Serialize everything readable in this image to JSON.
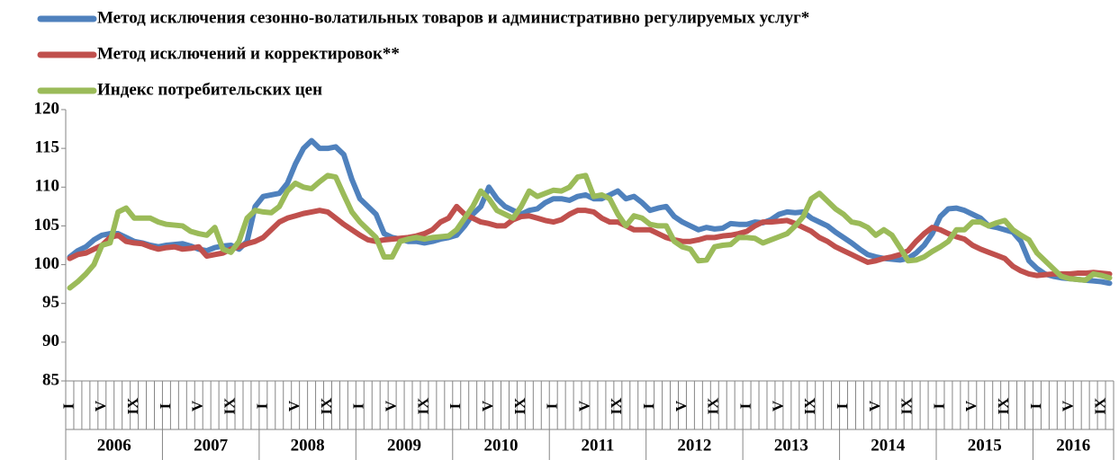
{
  "chart_data": {
    "type": "line",
    "categories": [
      "I",
      null,
      null,
      null,
      "V",
      null,
      null,
      null,
      "IX",
      null,
      null,
      null,
      "I",
      null,
      null,
      null,
      "V",
      null,
      null,
      null,
      "IX",
      null,
      null,
      null,
      "I",
      null,
      null,
      null,
      "V",
      null,
      null,
      null,
      "IX",
      null,
      null,
      null,
      "I",
      null,
      null,
      null,
      "V",
      null,
      null,
      null,
      "IX",
      null,
      null,
      null,
      "I",
      null,
      null,
      null,
      "V",
      null,
      null,
      null,
      "IX",
      null,
      null,
      null,
      "I",
      null,
      null,
      null,
      "V",
      null,
      null,
      null,
      "IX",
      null,
      null,
      null,
      "I",
      null,
      null,
      null,
      "V",
      null,
      null,
      null,
      "IX",
      null,
      null,
      null,
      "I",
      null,
      null,
      null,
      "V",
      null,
      null,
      null,
      "IX",
      null,
      null,
      null,
      "I",
      null,
      null,
      null,
      "V",
      null,
      null,
      null,
      "IX",
      null,
      null,
      null,
      "I",
      null,
      null,
      null,
      "V",
      null,
      null,
      null,
      "IX",
      null,
      null,
      null,
      "I",
      null,
      null,
      null,
      "V",
      null,
      null,
      null,
      "IX",
      null
    ],
    "years": [
      "2006",
      "2007",
      "2008",
      "2009",
      "2010",
      "2011",
      "2012",
      "2013",
      "2014",
      "2015",
      "2016"
    ],
    "series": [
      {
        "name": "Метод исключения сезонно-волатильных товаров и административно регулируемых услуг*",
        "color": "#4f81bd",
        "values": [
          101,
          101.8,
          102.3,
          103.2,
          103.8,
          104,
          104,
          103.5,
          103,
          102.8,
          102.5,
          102.3,
          102.5,
          102.6,
          102.7,
          102.4,
          102,
          101.8,
          102.2,
          102.4,
          102.5,
          102,
          103,
          107.5,
          108.8,
          109,
          109.2,
          110.5,
          113,
          115,
          116,
          115,
          115,
          115.2,
          114.2,
          111,
          108.5,
          107.5,
          106.5,
          104,
          103.5,
          103.3,
          103,
          103,
          102.8,
          103,
          103.3,
          103.5,
          103.8,
          105,
          106.5,
          107.5,
          110,
          108.5,
          107.5,
          107,
          106.5,
          107,
          107.2,
          108,
          108.5,
          108.5,
          108.3,
          108.8,
          109,
          108.5,
          108.5,
          109,
          109.5,
          108.5,
          108.8,
          108,
          107,
          107.3,
          107.5,
          106.2,
          105.5,
          105,
          104.5,
          104.8,
          104.6,
          104.7,
          105.3,
          105.2,
          105.2,
          105.5,
          105.4,
          105.8,
          106.5,
          106.8,
          106.7,
          106.8,
          106,
          105.5,
          105,
          104.2,
          103.5,
          102.8,
          102,
          101.3,
          101,
          100.8,
          100.7,
          100.6,
          100.8,
          101.5,
          102.5,
          104,
          106.2,
          107.2,
          107.3,
          107,
          106.5,
          106,
          105,
          104.8,
          104.5,
          104.2,
          103,
          100.5,
          99.5,
          98.8,
          98.5,
          98.3,
          98.2,
          98.1,
          98,
          97.9,
          97.8,
          97.6
        ]
      },
      {
        "name": "Метод исключений и корректировок**",
        "color": "#c0504d",
        "values": [
          100.8,
          101.3,
          101.5,
          102,
          102.5,
          103.5,
          103.8,
          103,
          102.8,
          102.7,
          102.3,
          102,
          102.2,
          102.3,
          102,
          102.1,
          102.3,
          101.1,
          101.3,
          101.5,
          102,
          102.3,
          102.7,
          103,
          103.5,
          104.5,
          105.5,
          106,
          106.3,
          106.6,
          106.8,
          107,
          106.8,
          106,
          105.2,
          104.5,
          103.8,
          103.2,
          103,
          103.2,
          103.3,
          103.4,
          103.5,
          103.7,
          104,
          104.5,
          105.5,
          106,
          107.5,
          106.5,
          106,
          105.5,
          105.3,
          105,
          105,
          105.8,
          106.2,
          106.3,
          106,
          105.7,
          105.5,
          105.8,
          106.5,
          107,
          107,
          106.8,
          106,
          105.5,
          105.5,
          105,
          104.5,
          104.5,
          104.5,
          104,
          103.5,
          103.2,
          103,
          103,
          103.2,
          103.5,
          103.5,
          103.7,
          103.8,
          104,
          104.3,
          105,
          105.5,
          105.5,
          105.6,
          105.7,
          105.3,
          104.8,
          104.3,
          103.5,
          103,
          102.3,
          101.8,
          101.3,
          100.8,
          100.3,
          100.5,
          100.8,
          101,
          101.3,
          101.8,
          103,
          104,
          104.8,
          104.5,
          104,
          103.6,
          103.3,
          102.5,
          102,
          101.6,
          101.2,
          100.8,
          99.8,
          99.2,
          98.8,
          98.6,
          98.7,
          98.8,
          98.8,
          98.8,
          98.9,
          98.9,
          99,
          98.9,
          98.8
        ]
      },
      {
        "name": "Индекс потребительских цен",
        "color": "#9bbb59",
        "values": [
          97,
          97.8,
          98.8,
          100,
          102.5,
          102.8,
          106.8,
          107.3,
          106,
          106,
          106,
          105.5,
          105.2,
          105.1,
          105,
          104.3,
          104,
          103.8,
          104.8,
          102,
          101.6,
          103,
          106,
          107,
          106.8,
          106.7,
          107.5,
          109.5,
          110.5,
          110,
          109.8,
          110.7,
          111.5,
          111.3,
          109,
          106.8,
          105.5,
          104.5,
          103.5,
          101,
          101,
          103,
          103.3,
          103.5,
          103.3,
          103.5,
          103.6,
          103.7,
          104.5,
          106,
          107.5,
          109.5,
          108.5,
          107,
          106.5,
          106,
          107.5,
          109.5,
          108.8,
          109.2,
          109.6,
          109.5,
          110,
          111.3,
          111.5,
          108.8,
          109,
          108.5,
          106.5,
          105,
          106.3,
          106,
          105.2,
          105,
          105,
          103,
          102.3,
          102,
          100.5,
          100.6,
          102.3,
          102.5,
          102.6,
          103.5,
          103.5,
          103.4,
          102.8,
          103.2,
          103.6,
          104,
          105,
          106.2,
          108.5,
          109.2,
          108.2,
          107.2,
          106.5,
          105.5,
          105.3,
          104.8,
          103.8,
          104.5,
          103.8,
          102.2,
          100.5,
          100.6,
          101,
          101.7,
          102.3,
          103,
          104.5,
          104.5,
          105.5,
          105.5,
          105,
          105.4,
          105.7,
          104.5,
          103.8,
          103.2,
          101.5,
          100.5,
          99.5,
          98.5,
          98.2,
          98.1,
          98,
          98.8,
          98.6,
          98.3
        ]
      }
    ],
    "ylim": [
      85,
      120
    ],
    "yticks": [
      85,
      90,
      95,
      100,
      105,
      110,
      115,
      120
    ]
  }
}
